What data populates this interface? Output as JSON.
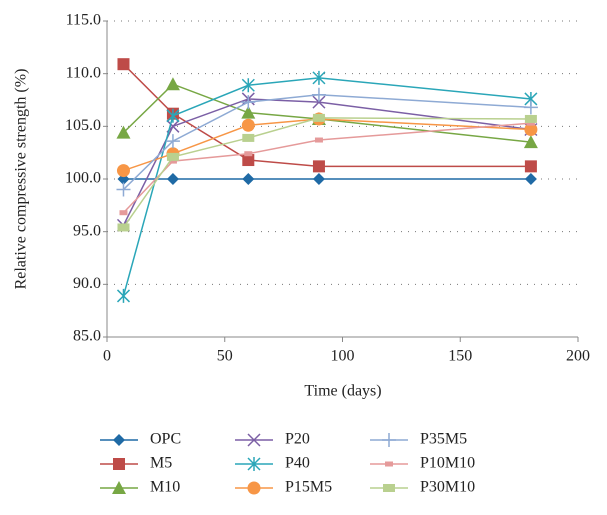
{
  "chart_data": {
    "type": "line",
    "x_label": "Time (days)",
    "y_label": "Relative compressive strength (%)",
    "x": [
      7,
      28,
      60,
      90,
      180
    ],
    "xlim": [
      0,
      200
    ],
    "xticks": [
      0,
      50,
      100,
      150,
      200
    ],
    "ylim": [
      85,
      115
    ],
    "yticks": [
      {
        "value": 85,
        "label": "85.0"
      },
      {
        "value": 90,
        "label": "90.0"
      },
      {
        "value": 95,
        "label": "95.0"
      },
      {
        "value": 100,
        "label": "100.0"
      },
      {
        "value": 105,
        "label": "105.0"
      },
      {
        "value": 110,
        "label": "110.0"
      },
      {
        "value": 115,
        "label": "115.0"
      }
    ],
    "grid": true,
    "legend": "bottom",
    "series": [
      {
        "name": "OPC",
        "color": "#1f6aa5",
        "marker": "diamond",
        "values": [
          100,
          100,
          100,
          100,
          100
        ]
      },
      {
        "name": "M5",
        "color": "#be4b48",
        "marker": "square",
        "values": [
          110.9,
          106.2,
          101.8,
          101.2,
          101.2
        ]
      },
      {
        "name": "M10",
        "color": "#77a744",
        "marker": "triangle",
        "values": [
          104.4,
          109.0,
          106.3,
          105.7,
          103.5
        ]
      },
      {
        "name": "P20",
        "color": "#7b5fa5",
        "marker": "x",
        "values": [
          95.6,
          105.0,
          107.6,
          107.3,
          104.7
        ]
      },
      {
        "name": "P40",
        "color": "#2aa6b8",
        "marker": "star",
        "values": [
          88.9,
          106.0,
          108.9,
          109.6,
          107.6
        ]
      },
      {
        "name": "P15M5",
        "color": "#f79646",
        "marker": "circle",
        "values": [
          100.8,
          102.4,
          105.1,
          105.7,
          104.7
        ]
      },
      {
        "name": "P35M5",
        "color": "#8eaad4",
        "marker": "plus",
        "values": [
          99.0,
          103.6,
          107.3,
          108.0,
          106.8
        ]
      },
      {
        "name": "P10M10",
        "color": "#e59a9a",
        "marker": "dash",
        "values": [
          96.8,
          101.7,
          102.4,
          103.7,
          105.3
        ]
      },
      {
        "name": "P30M10",
        "color": "#b9d08f",
        "marker": "rect",
        "values": [
          95.4,
          102.1,
          103.9,
          105.8,
          105.7
        ]
      }
    ]
  }
}
